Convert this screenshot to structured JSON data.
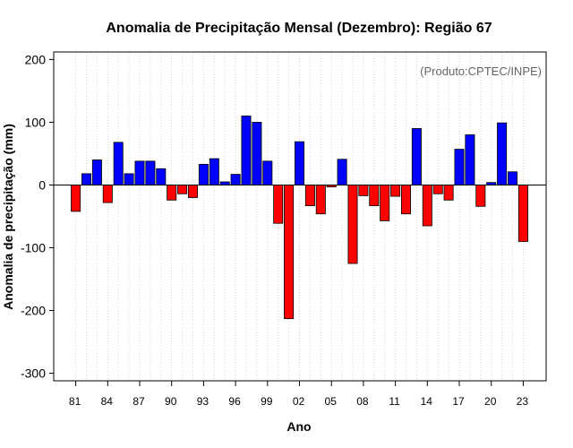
{
  "chart_data": {
    "type": "bar",
    "title": "Anomalia de Precipitação Mensal (Dezembro): Região 67",
    "xlabel": "Ano",
    "ylabel": "Anomalia de precipitação (mm)",
    "annotation": "(Produto:CPTEC/INPE)",
    "annotation_position": "top-right",
    "ylim": [
      -312,
      212
    ],
    "yticks": [
      200,
      100,
      0,
      -100,
      -200,
      -300
    ],
    "ytick_labels": [
      "200",
      "100",
      "0",
      "-100",
      "-200",
      "-300"
    ],
    "xtick_labels": [
      "81",
      "84",
      "87",
      "90",
      "93",
      "96",
      "99",
      "02",
      "05",
      "08",
      "11",
      "14",
      "17",
      "20",
      "23"
    ],
    "xtick_years": [
      1981,
      1984,
      1987,
      1990,
      1993,
      1996,
      1999,
      2002,
      2005,
      2008,
      2011,
      2014,
      2017,
      2020,
      2023
    ],
    "grid": "vertical dotted lines at each year",
    "positive_color": "#0000ff",
    "negative_color": "#ff0000",
    "categories": [
      1981,
      1982,
      1983,
      1984,
      1985,
      1986,
      1987,
      1988,
      1989,
      1990,
      1991,
      1992,
      1993,
      1994,
      1995,
      1996,
      1997,
      1998,
      1999,
      2000,
      2001,
      2002,
      2003,
      2004,
      2005,
      2006,
      2007,
      2008,
      2009,
      2010,
      2011,
      2012,
      2013,
      2014,
      2015,
      2016,
      2017,
      2018,
      2019,
      2020,
      2021,
      2022,
      2023
    ],
    "values": [
      -42,
      18,
      40,
      -28,
      68,
      18,
      38,
      38,
      26,
      -24,
      -14,
      -20,
      33,
      42,
      5,
      17,
      110,
      100,
      38,
      -61,
      -213,
      69,
      -33,
      -46,
      -3,
      41,
      -125,
      -17,
      -33,
      -57,
      -18,
      -46,
      90,
      -65,
      -14,
      -24,
      57,
      80,
      -34,
      4,
      99,
      21,
      -90
    ]
  }
}
